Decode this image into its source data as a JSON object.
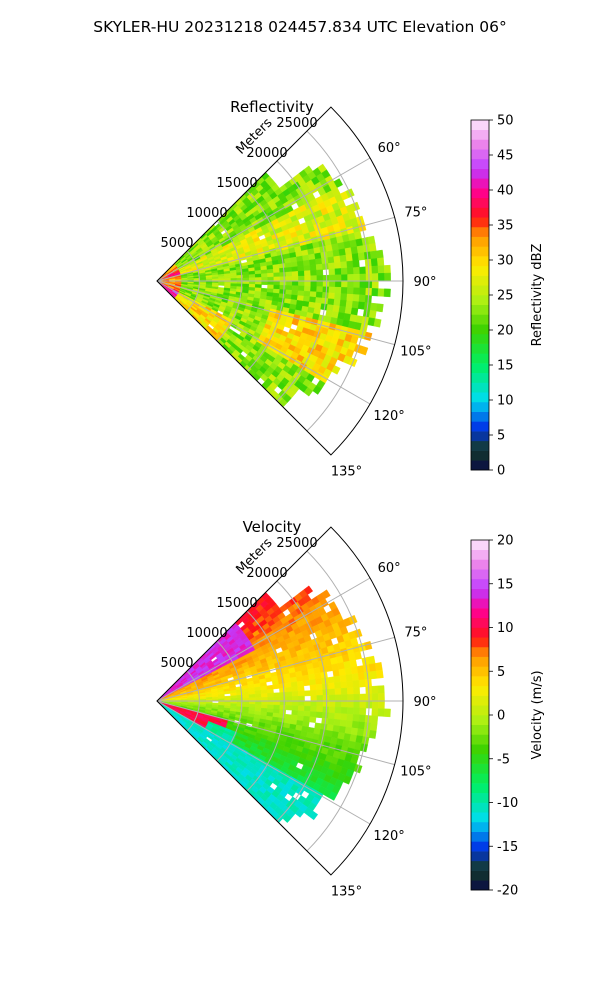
{
  "figure": {
    "title": "SKYLER-HU  20231218  024457.834 UTC Elevation 06°"
  },
  "chart_data": [
    {
      "type": "heatmap",
      "subtype": "polar-sector",
      "title": "Reflectivity",
      "radial_label": "Meters",
      "radial_ticks": [
        5000,
        10000,
        15000,
        20000,
        25000
      ],
      "radial_tick_labels": [
        "5000",
        "10000",
        "15000",
        "20000",
        "25000"
      ],
      "radius_max": 29000,
      "theta_range": [
        45,
        135
      ],
      "angle_ticks": [
        60,
        75,
        90,
        105,
        120,
        135
      ],
      "angle_tick_labels": [
        "60°",
        "75°",
        "90°",
        "105°",
        "120°",
        "135°"
      ],
      "grid": true,
      "colorbar": {
        "label": "Reflectivity dBZ",
        "range": [
          0,
          50
        ],
        "ticks": [
          0,
          5,
          10,
          15,
          20,
          25,
          30,
          35,
          40,
          45,
          50
        ],
        "tick_labels": [
          "0",
          "5",
          "10",
          "15",
          "20",
          "25",
          "30",
          "35",
          "40",
          "45",
          "50"
        ],
        "colormap": "HomeyerRainbow-like",
        "placement": "right"
      }
    },
    {
      "type": "heatmap",
      "subtype": "polar-sector",
      "title": "Velocity",
      "radial_label": "Meters",
      "radial_ticks": [
        5000,
        10000,
        15000,
        20000,
        25000
      ],
      "radial_tick_labels": [
        "5000",
        "10000",
        "15000",
        "20000",
        "25000"
      ],
      "radius_max": 29000,
      "theta_range": [
        45,
        135
      ],
      "angle_ticks": [
        60,
        75,
        90,
        105,
        120,
        135
      ],
      "angle_tick_labels": [
        "60°",
        "75°",
        "90°",
        "105°",
        "120°",
        "135°"
      ],
      "grid": true,
      "colorbar": {
        "label": "Velocity (m/s)",
        "range": [
          -20,
          20
        ],
        "ticks": [
          -20,
          -15,
          -10,
          -5,
          0,
          5,
          10,
          15,
          20
        ],
        "tick_labels": [
          "-20",
          "-15",
          "-10",
          "-5",
          "0",
          "5",
          "10",
          "15",
          "20"
        ],
        "colormap": "HomeyerRainbow-like",
        "placement": "right"
      }
    }
  ],
  "colors": {
    "grid": "#b0b0b0",
    "frame": "#000000"
  }
}
